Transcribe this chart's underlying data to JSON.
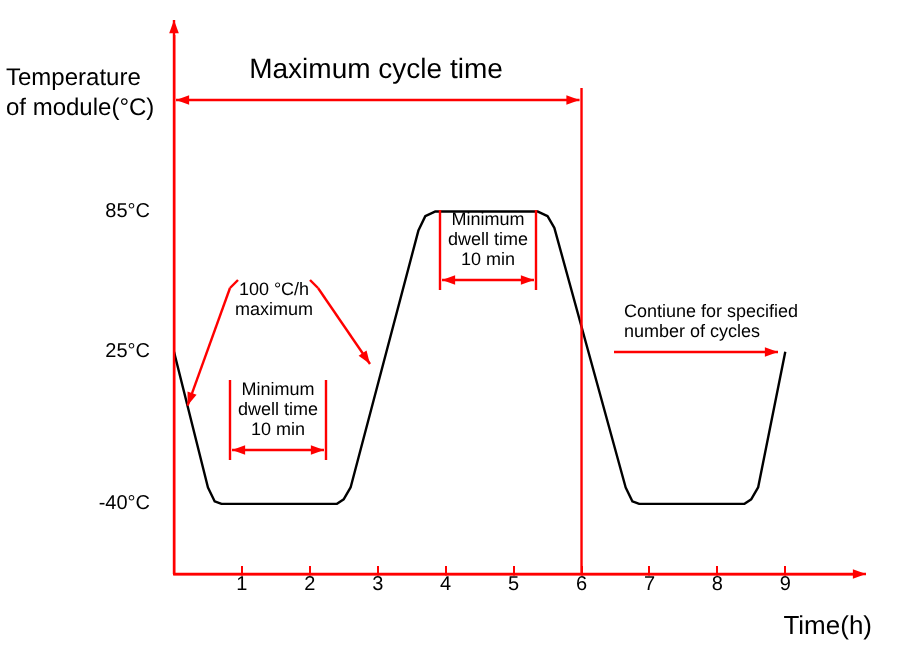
{
  "chart_data": {
    "type": "line",
    "xlabel": "Time(h)",
    "ylabel": "Temperature of module(°C)",
    "x": [
      0,
      0.5,
      0.6,
      0.7,
      2.4,
      2.5,
      2.6,
      3.6,
      3.7,
      3.85,
      5.35,
      5.5,
      5.6,
      6.65,
      6.75,
      6.85,
      8.4,
      8.5,
      8.6,
      9
    ],
    "series": [
      {
        "color": "#000000",
        "values": [
          25,
          -33,
          -39,
          -40,
          -40,
          -38,
          -33,
          77,
          83,
          85,
          85,
          83,
          78,
          -33,
          -39,
          -40,
          -40,
          -38,
          -33,
          25
        ]
      }
    ],
    "xlim": [
      0,
      10.1
    ],
    "xticks": [
      1,
      2,
      3,
      4,
      5,
      6,
      7,
      8,
      9
    ],
    "ylim": [
      -70,
      160
    ],
    "yticks": [
      {
        "value": -40,
        "label": "-40°C"
      },
      {
        "value": 25,
        "label": "25°C"
      },
      {
        "value": 85,
        "label": "85°C"
      }
    ],
    "ref_lines": [
      {
        "axis": "x",
        "value": 6,
        "color": "#ff0000"
      }
    ],
    "annotations": [
      "Maximum cycle time",
      "Minimum dwell time 10 min",
      {
        "text": "100 °C/h maximum",
        "x": 0.2,
        "y": 2
      },
      "Minimum dwell time 10 min",
      "Contiune for specified number of cycles"
    ],
    "grid": false,
    "legend": false,
    "marker": "none",
    "line_style": "solid"
  }
}
